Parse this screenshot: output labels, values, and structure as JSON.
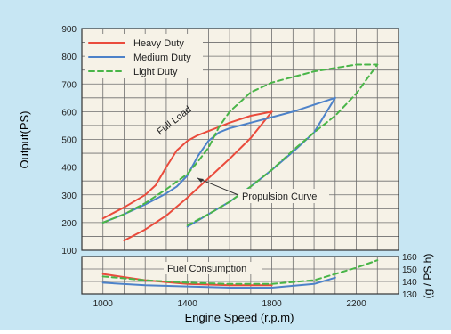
{
  "colors": {
    "panel_bg": "#c7e6f3",
    "plot_bg": "#f6f2e7",
    "grid": "#6e6e6e",
    "heavy": "#ea4b3c",
    "medium": "#4d82c9",
    "light": "#49b548",
    "text": "#222222"
  },
  "chart_data": [
    {
      "type": "line",
      "panel": "output",
      "title": "",
      "xlabel": "",
      "ylabel": "Output(PS)",
      "xlim": [
        900,
        2400
      ],
      "ylim": [
        100,
        900
      ],
      "grid": true,
      "yticks": [
        "100",
        "200",
        "300",
        "400",
        "500",
        "600",
        "700",
        "800",
        "900"
      ],
      "legend": {
        "position": "top-left",
        "entries": [
          "Heavy Duty",
          "Medium Duty",
          "Light Duty"
        ]
      },
      "annotations": [
        "Full Load",
        "Propulsion Curve"
      ],
      "series": [
        {
          "name": "Heavy Duty",
          "style": "solid",
          "color": "heavy",
          "full_load": [
            [
              1000,
              215
            ],
            [
              1100,
              255
            ],
            [
              1200,
              300
            ],
            [
              1250,
              335
            ],
            [
              1300,
              400
            ],
            [
              1350,
              460
            ],
            [
              1400,
              495
            ],
            [
              1450,
              515
            ],
            [
              1500,
              530
            ],
            [
              1550,
              545
            ],
            [
              1600,
              560
            ],
            [
              1700,
              585
            ],
            [
              1800,
              600
            ]
          ],
          "propulsion": [
            [
              1100,
              135
            ],
            [
              1200,
              175
            ],
            [
              1300,
              225
            ],
            [
              1400,
              290
            ],
            [
              1500,
              360
            ],
            [
              1600,
              430
            ],
            [
              1700,
              505
            ],
            [
              1800,
              600
            ]
          ]
        },
        {
          "name": "Medium Duty",
          "style": "solid",
          "color": "medium",
          "full_load": [
            [
              1000,
              200
            ],
            [
              1100,
              230
            ],
            [
              1200,
              265
            ],
            [
              1300,
              305
            ],
            [
              1350,
              330
            ],
            [
              1400,
              370
            ],
            [
              1450,
              440
            ],
            [
              1500,
              495
            ],
            [
              1550,
              525
            ],
            [
              1600,
              540
            ],
            [
              1700,
              560
            ],
            [
              1800,
              580
            ],
            [
              1900,
              600
            ],
            [
              2000,
              625
            ],
            [
              2100,
              650
            ]
          ],
          "propulsion": [
            [
              1400,
              185
            ],
            [
              1500,
              230
            ],
            [
              1600,
              275
            ],
            [
              1700,
              330
            ],
            [
              1800,
              390
            ],
            [
              1900,
              455
            ],
            [
              2000,
              525
            ],
            [
              2100,
              650
            ]
          ]
        },
        {
          "name": "Light Duty",
          "style": "dashed",
          "color": "light",
          "full_load": [
            [
              1000,
              200
            ],
            [
              1100,
              230
            ],
            [
              1200,
              270
            ],
            [
              1300,
              320
            ],
            [
              1400,
              375
            ],
            [
              1450,
              420
            ],
            [
              1500,
              470
            ],
            [
              1550,
              545
            ],
            [
              1600,
              600
            ],
            [
              1700,
              670
            ],
            [
              1800,
              705
            ],
            [
              2000,
              745
            ],
            [
              2200,
              770
            ],
            [
              2300,
              770
            ]
          ],
          "propulsion": [
            [
              1400,
              190
            ],
            [
              1500,
              230
            ],
            [
              1600,
              275
            ],
            [
              1700,
              330
            ],
            [
              1800,
              390
            ],
            [
              1900,
              460
            ],
            [
              2000,
              525
            ],
            [
              2100,
              585
            ],
            [
              2200,
              665
            ],
            [
              2300,
              770
            ]
          ]
        }
      ]
    },
    {
      "type": "line",
      "panel": "fuel",
      "title": "",
      "xlabel": "Engine Speed (r.p.m)",
      "ylabel": "(g / PS.h)",
      "xlim": [
        900,
        2400
      ],
      "ylim": [
        130,
        160
      ],
      "grid": true,
      "xticks": [
        "1000",
        "1400",
        "1800",
        "2200"
      ],
      "yticks": [
        "130",
        "140",
        "150",
        "160"
      ],
      "annotations": [
        "Fuel Consumption"
      ],
      "series": [
        {
          "name": "Heavy Duty",
          "style": "solid",
          "color": "heavy",
          "points": [
            [
              1000,
              146
            ],
            [
              1200,
              141
            ],
            [
              1400,
              138
            ],
            [
              1600,
              137
            ],
            [
              1800,
              137
            ]
          ]
        },
        {
          "name": "Medium Duty",
          "style": "solid",
          "color": "medium",
          "points": [
            [
              1000,
              139
            ],
            [
              1200,
              137
            ],
            [
              1400,
              136
            ],
            [
              1600,
              135
            ],
            [
              1800,
              135
            ],
            [
              2000,
              138
            ],
            [
              2100,
              143
            ]
          ]
        },
        {
          "name": "Light Duty",
          "style": "dashed",
          "color": "light",
          "points": [
            [
              1000,
              144
            ],
            [
              1200,
              141
            ],
            [
              1400,
              139
            ],
            [
              1600,
              138
            ],
            [
              1800,
              138
            ],
            [
              2000,
              141
            ],
            [
              2200,
              151
            ],
            [
              2300,
              157
            ]
          ]
        }
      ]
    }
  ]
}
